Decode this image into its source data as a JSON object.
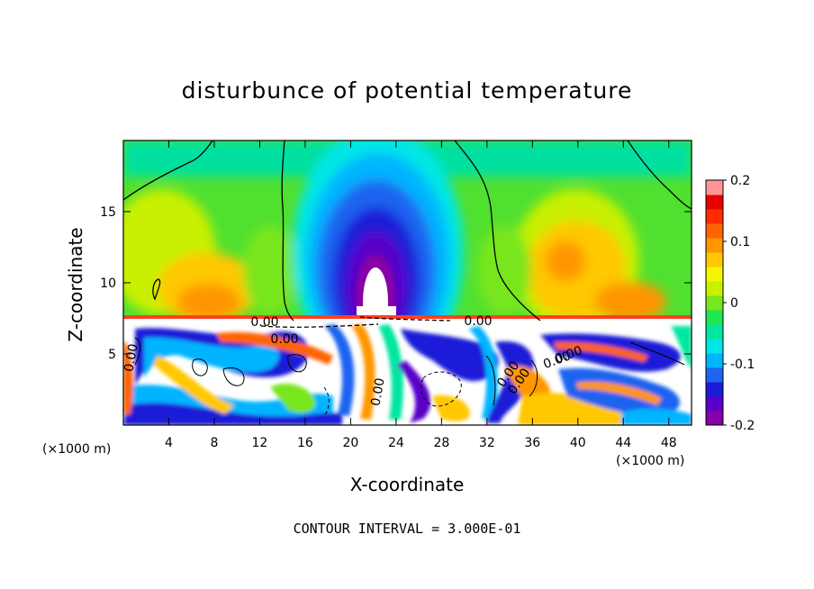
{
  "chart_data": {
    "type": "heatmap",
    "title": "disturbunce of potential temperature",
    "xlabel": "X-coordinate",
    "ylabel": "Z-coordinate",
    "x_unit": "(×1000 m)",
    "z_unit": "(×1000 m)",
    "xlim": [
      0,
      50
    ],
    "ylim": [
      0,
      20
    ],
    "x_ticks": [
      "4",
      "8",
      "12",
      "16",
      "20",
      "24",
      "28",
      "32",
      "36",
      "40",
      "44",
      "48"
    ],
    "y_ticks": [
      "5",
      "10",
      "15"
    ],
    "colorbar": {
      "range": [
        -0.2,
        0.2
      ],
      "tick_labels": [
        "0.2",
        "0.1",
        "0",
        "-0.1",
        "-0.2"
      ],
      "colors": [
        "#8800a8",
        "#5a00c8",
        "#1c1cd8",
        "#1e64f0",
        "#00b4ff",
        "#00e6e6",
        "#00e6a0",
        "#1ee650",
        "#78e61e",
        "#c8f000",
        "#f5f500",
        "#ffc800",
        "#ff9600",
        "#ff6400",
        "#ff2a00",
        "#e80000",
        "#ff9696"
      ]
    },
    "contour_labels": [
      "0.00",
      "0.00",
      "0.00",
      "0.00",
      "0.00",
      "0.00",
      "0.00",
      "0.00",
      "0.00"
    ],
    "contour_interval": "CONTOUR INTERVAL = 3.000E-01"
  },
  "units": {
    "left": "(×1000 m)",
    "right": "(×1000 m)"
  }
}
